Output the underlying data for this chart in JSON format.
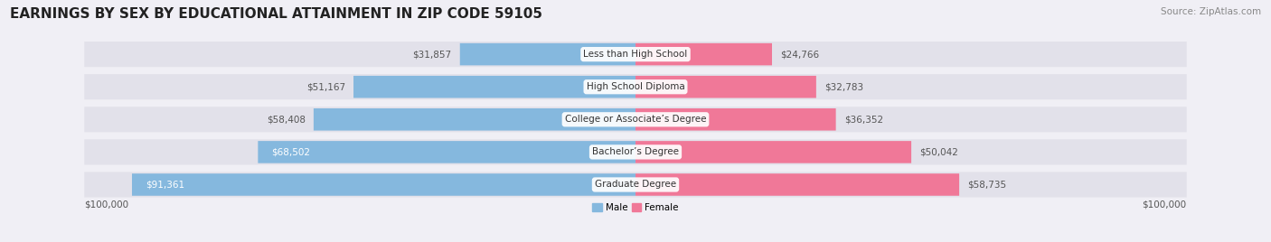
{
  "title": "EARNINGS BY SEX BY EDUCATIONAL ATTAINMENT IN ZIP CODE 59105",
  "source": "Source: ZipAtlas.com",
  "categories": [
    "Less than High School",
    "High School Diploma",
    "College or Associate’s Degree",
    "Bachelor’s Degree",
    "Graduate Degree"
  ],
  "male_values": [
    31857,
    51167,
    58408,
    68502,
    91361
  ],
  "female_values": [
    24766,
    32783,
    36352,
    50042,
    58735
  ],
  "male_color": "#85b8de",
  "female_color": "#f07898",
  "background_color": "#f0eff5",
  "row_bg_color": "#e2e1ea",
  "max_value": 100000,
  "xlabel_left": "$100,000",
  "xlabel_right": "$100,000",
  "title_fontsize": 11,
  "source_fontsize": 7.5,
  "label_fontsize": 7.5,
  "value_fontsize": 7.5,
  "tick_fontsize": 7.5,
  "male_inside_threshold": 65000
}
